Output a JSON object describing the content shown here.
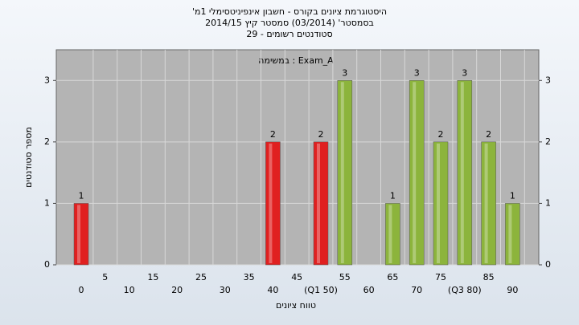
{
  "chart_data": {
    "type": "bar",
    "title": [
      "היסטוגרמת ציונים בקורס - חשבון אינפיניטסימלי 1מ'",
      "בסמסטר' (03/2014) סמסטר קיץ 2014/15",
      "סטודנטים רשומים - 29"
    ],
    "annotation": "במשימה : Exam_A",
    "y_label": "מספר סטודנטים",
    "x_label": "טווח ציונים",
    "categories": [
      "0",
      "5",
      "10",
      "15",
      "20",
      "25",
      "30",
      "35",
      "40",
      "45",
      "(Q1 50)",
      "55",
      "60",
      "65",
      "70",
      "75",
      "(Q3 80)",
      "85",
      "90"
    ],
    "values": [
      1,
      0,
      0,
      0,
      0,
      0,
      0,
      0,
      2,
      0,
      2,
      3,
      0,
      1,
      3,
      2,
      3,
      2,
      1
    ],
    "value_labels": [
      "1",
      null,
      null,
      null,
      null,
      null,
      null,
      null,
      "2",
      null,
      "2",
      "3",
      null,
      "1",
      "3",
      "2",
      "3",
      "2",
      "1"
    ],
    "colors": [
      "#e02020",
      "#e02020",
      "#e02020",
      "#e02020",
      "#e02020",
      "#e02020",
      "#e02020",
      "#e02020",
      "#e02020",
      "#e02020",
      "#e02020",
      "#8cb43c",
      "#8cb43c",
      "#8cb43c",
      "#8cb43c",
      "#8cb43c",
      "#8cb43c",
      "#8cb43c",
      "#8cb43c"
    ],
    "ylim": [
      0,
      3.5
    ],
    "yticks": [
      0,
      1,
      2,
      3
    ],
    "right_axis": true,
    "grid": true
  }
}
